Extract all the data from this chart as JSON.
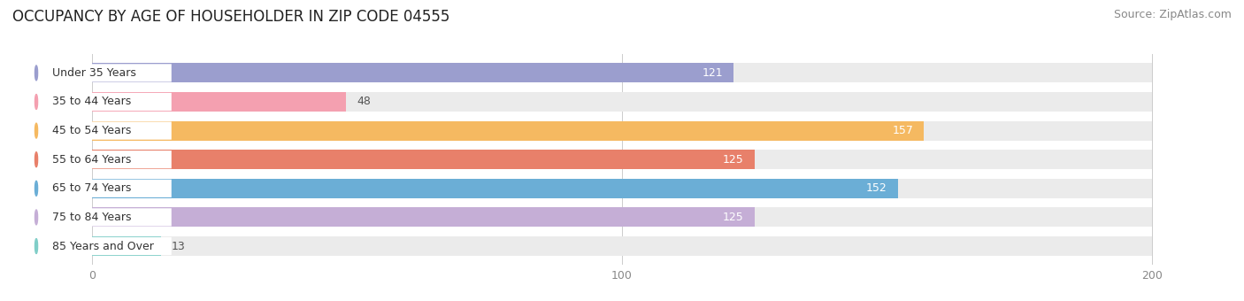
{
  "title": "OCCUPANCY BY AGE OF HOUSEHOLDER IN ZIP CODE 04555",
  "source": "Source: ZipAtlas.com",
  "categories": [
    "Under 35 Years",
    "35 to 44 Years",
    "45 to 54 Years",
    "55 to 64 Years",
    "65 to 74 Years",
    "75 to 84 Years",
    "85 Years and Over"
  ],
  "values": [
    121,
    48,
    157,
    125,
    152,
    125,
    13
  ],
  "bar_colors": [
    "#9B9ECE",
    "#F4A0B0",
    "#F5B961",
    "#E8806A",
    "#6BAED6",
    "#C5AED6",
    "#80CEC8"
  ],
  "bar_bg_color": "#EBEBEB",
  "xlim": [
    -15,
    215
  ],
  "xmax": 200,
  "xticks": [
    0,
    100,
    200
  ],
  "title_fontsize": 12,
  "source_fontsize": 9,
  "label_fontsize": 9,
  "value_fontsize": 9,
  "bar_height": 0.68,
  "figsize": [
    14.06,
    3.4
  ],
  "dpi": 100
}
